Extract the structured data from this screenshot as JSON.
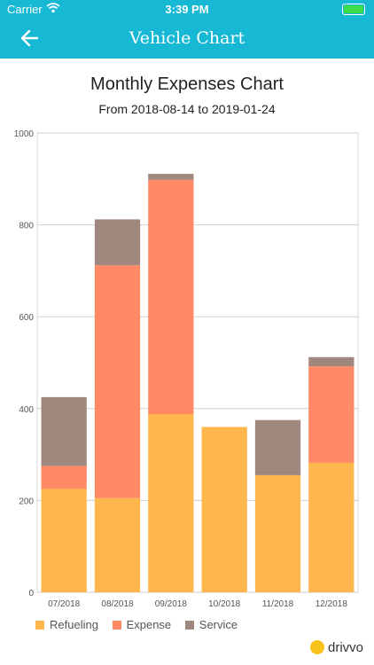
{
  "status_bar": {
    "carrier": "Carrier",
    "time": "3:39 PM"
  },
  "nav": {
    "title": "Vehicle Chart"
  },
  "chart_header": {
    "title": "Monthly Expenses Chart",
    "subtitle": "From 2018-08-14 to 2019-01-24"
  },
  "colors": {
    "bar_primary": "#16b8d4",
    "refueling": "#ffb74d",
    "expense": "#ff8a65",
    "service": "#a1887f",
    "grid": "#cfcfcf"
  },
  "chart_data": {
    "type": "bar",
    "stacked": true,
    "categories": [
      "07/2018",
      "08/2018",
      "09/2018",
      "10/2018",
      "11/2018",
      "12/2018"
    ],
    "series": [
      {
        "name": "Refueling",
        "values": [
          225,
          205,
          388,
          360,
          255,
          282
        ]
      },
      {
        "name": "Expense",
        "values": [
          50,
          507,
          510,
          0,
          0,
          210
        ]
      },
      {
        "name": "Service",
        "values": [
          150,
          100,
          13,
          0,
          120,
          20
        ]
      }
    ],
    "ylim": [
      0,
      1000
    ],
    "yticks": [
      "0",
      "200",
      "400",
      "600",
      "800",
      "1000"
    ],
    "grid": "horizontal",
    "legend_position": "bottom-left"
  },
  "legend": [
    "Refueling",
    "Expense",
    "Service"
  ],
  "brand": {
    "name": "drivvo"
  }
}
